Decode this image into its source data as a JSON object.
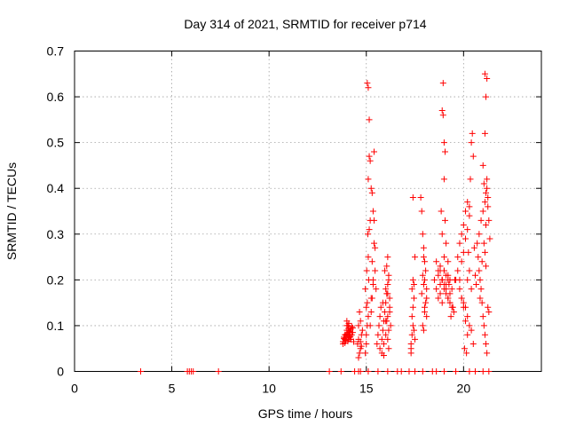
{
  "chart_data": {
    "type": "scatter",
    "title": "Day 314 of 2021, SRMTID for receiver p714",
    "xlabel": "GPS time / hours",
    "ylabel": "SRMTID / TECUs",
    "xlim": [
      0,
      24
    ],
    "ylim": [
      0,
      0.7
    ],
    "x_ticks": [
      0,
      5,
      10,
      15,
      20
    ],
    "x_tick_labels": [
      "0",
      "5",
      "10",
      "15",
      "20"
    ],
    "y_ticks": [
      0,
      0.1,
      0.2,
      0.3,
      0.4,
      0.5,
      0.6,
      0.7
    ],
    "y_tick_labels": [
      "0",
      "0.1",
      "0.2",
      "0.3",
      "0.4",
      "0.5",
      "0.6",
      "0.7"
    ],
    "grid": true,
    "marker": "+",
    "series": [
      {
        "name": "SRMTID",
        "color": "#ff0000",
        "x": [
          3.4,
          5.8,
          5.9,
          6.0,
          6.1,
          7.4,
          13.1,
          13.7,
          14.4,
          14.6,
          14.7,
          15.1,
          15.6,
          16.1,
          16.6,
          16.8,
          17.2,
          17.5,
          17.9,
          18.4,
          18.6,
          19.0,
          19.6,
          20.3,
          20.6,
          21.0,
          21.3,
          13.8,
          13.85,
          13.9,
          13.95,
          14.0,
          14.05,
          14.1,
          14.15,
          14.2,
          14.25,
          14.3,
          14.35,
          13.8,
          13.9,
          14.0,
          14.1,
          14.2,
          14.3,
          13.85,
          13.95,
          14.05,
          14.15,
          14.25,
          13.9,
          14.0,
          14.1,
          14.2,
          13.95,
          14.05,
          14.15,
          14.0,
          14.1,
          14.08,
          14.12,
          14.18,
          14.55,
          14.6,
          14.65,
          14.7,
          14.75,
          14.8,
          14.6,
          14.7,
          14.65,
          14.75,
          14.6,
          14.7,
          14.95,
          15.0,
          15.05,
          15.0,
          14.95,
          15.02,
          15.08,
          15.1,
          15.12,
          15.05,
          15.1,
          15.0,
          15.15,
          15.2,
          15.1,
          15.15,
          15.2,
          15.25,
          15.3,
          15.35,
          15.4,
          15.4,
          15.45,
          15.35,
          15.3,
          15.25,
          15.2,
          15.3,
          15.45,
          15.5,
          15.4,
          15.35,
          15.25,
          15.15,
          15.1,
          15.05,
          15.55,
          15.6,
          15.65,
          15.7,
          15.75,
          15.8,
          15.85,
          15.9,
          15.95,
          16.0,
          16.05,
          16.1,
          16.15,
          16.2,
          16.25,
          15.7,
          15.8,
          15.9,
          16.0,
          16.1,
          16.2,
          16.05,
          16.1,
          16.15,
          16.0,
          15.95,
          16.1,
          16.2,
          16.15,
          16.05,
          15.85,
          16.0,
          16.1,
          16.15,
          15.9,
          17.3,
          17.35,
          17.4,
          17.3,
          17.35,
          17.4,
          17.45,
          17.35,
          17.4,
          17.45,
          17.3,
          17.4,
          17.5,
          17.45,
          17.5,
          17.8,
          17.85,
          17.9,
          17.95,
          18.0,
          18.05,
          18.1,
          17.9,
          17.95,
          18.0,
          18.1,
          18.05,
          17.95,
          18.0,
          17.9,
          18.1,
          18.0,
          17.85,
          17.95,
          18.5,
          18.6,
          18.7,
          18.8,
          18.9,
          19.0,
          19.1,
          19.2,
          19.3,
          19.4,
          19.5,
          18.6,
          18.7,
          18.8,
          18.9,
          19.0,
          19.1,
          19.2,
          19.3,
          19.4,
          18.7,
          18.8,
          18.9,
          19.0,
          19.1,
          19.2,
          19.3,
          18.8,
          18.9,
          19.0,
          19.1,
          19.2,
          18.9,
          19.0,
          19.05,
          19.0,
          18.95,
          18.9,
          18.95,
          19.1,
          19.05,
          18.85,
          19.0,
          19.2,
          19.3,
          19.25,
          19.35,
          19.45,
          19.55,
          19.6,
          19.7,
          19.8,
          19.9,
          20.0,
          20.1,
          20.2,
          20.3,
          20.4,
          20.5,
          19.7,
          19.8,
          19.9,
          20.0,
          20.1,
          20.2,
          20.3,
          20.4,
          19.8,
          19.9,
          20.0,
          20.1,
          20.2,
          20.3,
          19.9,
          20.0,
          20.1,
          20.2,
          20.05,
          20.15,
          20.2,
          20.25,
          20.3,
          20.35,
          20.4,
          20.45,
          20.5,
          20.55,
          20.6,
          20.65,
          20.7,
          20.75,
          20.8,
          20.85,
          20.9,
          20.95,
          21.0,
          21.05,
          21.1,
          21.15,
          21.2,
          21.25,
          21.3,
          20.8,
          20.9,
          21.0,
          21.1,
          21.2,
          20.85,
          20.95,
          21.05,
          21.15,
          21.25,
          21.0,
          21.1,
          21.15,
          21.2,
          21.1,
          21.05,
          21.15,
          21.2,
          21.25,
          21.3,
          21.35,
          21.1,
          21.15
        ],
        "y": [
          0,
          0,
          0,
          0,
          0,
          0,
          0,
          0,
          0,
          0,
          0,
          0,
          0,
          0,
          0,
          0,
          0,
          0,
          0,
          0,
          0,
          0,
          0,
          0,
          0,
          0,
          0,
          0.065,
          0.075,
          0.07,
          0.08,
          0.09,
          0.1,
          0.085,
          0.075,
          0.07,
          0.08,
          0.095,
          0.065,
          0.06,
          0.08,
          0.11,
          0.09,
          0.07,
          0.085,
          0.072,
          0.068,
          0.078,
          0.088,
          0.098,
          0.062,
          0.082,
          0.105,
          0.092,
          0.074,
          0.066,
          0.086,
          0.1,
          0.07,
          0.094,
          0.08,
          0.076,
          0.06,
          0.1,
          0.13,
          0.05,
          0.08,
          0.09,
          0.07,
          0.11,
          0.04,
          0.055,
          0.03,
          0.065,
          0.04,
          0.06,
          0.1,
          0.14,
          0.18,
          0.22,
          0.3,
          0.25,
          0.2,
          0.15,
          0.12,
          0.08,
          0.31,
          0.33,
          0.42,
          0.47,
          0.46,
          0.4,
          0.39,
          0.35,
          0.48,
          0.33,
          0.27,
          0.2,
          0.16,
          0.13,
          0.1,
          0.24,
          0.22,
          0.18,
          0.28,
          0.19,
          0.16,
          0.55,
          0.62,
          0.63,
          0.06,
          0.08,
          0.1,
          0.12,
          0.14,
          0.07,
          0.09,
          0.11,
          0.13,
          0.15,
          0.17,
          0.19,
          0.21,
          0.16,
          0.1,
          0.05,
          0.04,
          0.06,
          0.08,
          0.12,
          0.14,
          0.23,
          0.25,
          0.2,
          0.18,
          0.22,
          0.17,
          0.13,
          0.09,
          0.11,
          0.15,
          0.11,
          0.07,
          0.05,
          0.035,
          0.06,
          0.08,
          0.1,
          0.05,
          0.12,
          0.14,
          0.16,
          0.18,
          0.2,
          0.19,
          0.04,
          0.38,
          0.25,
          0.09,
          0.07,
          0.38,
          0.35,
          0.3,
          0.25,
          0.2,
          0.15,
          0.12,
          0.1,
          0.09,
          0.13,
          0.18,
          0.22,
          0.27,
          0.24,
          0.21,
          0.16,
          0.14,
          0.17,
          0.19,
          0.2,
          0.18,
          0.16,
          0.22,
          0.2,
          0.19,
          0.17,
          0.21,
          0.15,
          0.14,
          0.13,
          0.24,
          0.22,
          0.17,
          0.15,
          0.25,
          0.19,
          0.16,
          0.2,
          0.18,
          0.21,
          0.23,
          0.2,
          0.22,
          0.18,
          0.16,
          0.15,
          0.19,
          0.2,
          0.18,
          0.21,
          0.2,
          0.3,
          0.42,
          0.48,
          0.5,
          0.56,
          0.57,
          0.63,
          0.28,
          0.33,
          0.35,
          0.22,
          0.24,
          0.17,
          0.19,
          0.12,
          0.14,
          0.2,
          0.2,
          0.22,
          0.18,
          0.16,
          0.15,
          0.14,
          0.12,
          0.1,
          0.09,
          0.06,
          0.25,
          0.28,
          0.3,
          0.32,
          0.35,
          0.37,
          0.22,
          0.18,
          0.2,
          0.24,
          0.26,
          0.29,
          0.31,
          0.34,
          0.16,
          0.14,
          0.11,
          0.08,
          0.05,
          0.04,
          0.2,
          0.26,
          0.36,
          0.42,
          0.5,
          0.52,
          0.47,
          0.27,
          0.21,
          0.19,
          0.28,
          0.25,
          0.22,
          0.2,
          0.18,
          0.15,
          0.12,
          0.1,
          0.08,
          0.06,
          0.04,
          0.14,
          0.13,
          0.3,
          0.33,
          0.35,
          0.37,
          0.4,
          0.16,
          0.24,
          0.28,
          0.32,
          0.36,
          0.45,
          0.52,
          0.6,
          0.64,
          0.65,
          0.41,
          0.39,
          0.42,
          0.38,
          0.33,
          0.29,
          0.26,
          0.23
        ]
      }
    ]
  }
}
